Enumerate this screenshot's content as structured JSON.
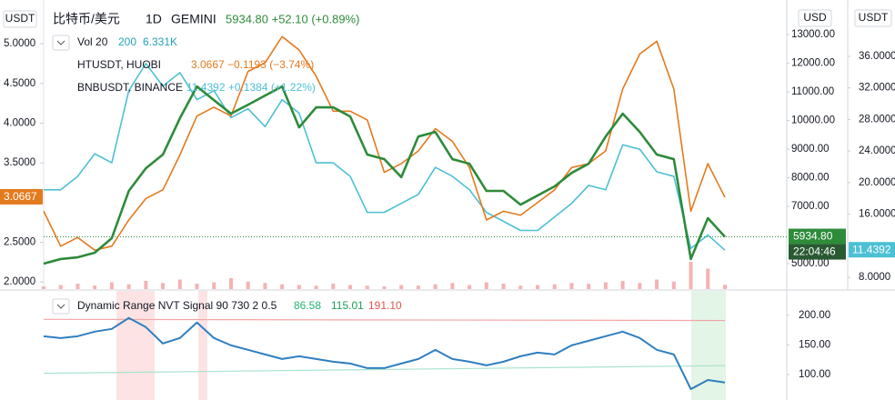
{
  "chart_data": {
    "type": "line",
    "left_unit": "USDT",
    "right_unit": "USD",
    "far_right_unit": "USDT",
    "symbol": "比特币/美元",
    "interval": "1D",
    "exchange": "GEMINI",
    "quote": "5934.80 +52.10 (+0.89%)",
    "time_tag": "22:04:46",
    "ylim": [
      4110,
      14210
    ],
    "yticks": [
      {
        "value": 5000,
        "label": "5000.00"
      },
      {
        "value": 7000,
        "label": "7000.00"
      },
      {
        "value": 8000,
        "label": "8000.00"
      },
      {
        "value": 9000,
        "label": "9000.00"
      },
      {
        "value": 10000,
        "label": "10000.00"
      },
      {
        "value": 11000,
        "label": "11000.00"
      },
      {
        "value": 12000,
        "label": "12000.00"
      },
      {
        "value": 13000,
        "label": "13000.00"
      }
    ],
    "ht_ylim": [
      1.91,
      5.55
    ],
    "ht_yticks": [
      {
        "value": 2,
        "label": "2.0000"
      },
      {
        "value": 2.5,
        "label": "2.5000"
      },
      {
        "value": 3.5,
        "label": "3.5000"
      },
      {
        "value": 4,
        "label": "4.0000"
      },
      {
        "value": 4.5,
        "label": "4.5000"
      },
      {
        "value": 5,
        "label": "5.0000"
      }
    ],
    "bnb_ylim": [
      6.51,
      43.14
    ],
    "bnb_yticks": [
      {
        "value": 8,
        "label": "8.0000"
      },
      {
        "value": 16,
        "label": "16.0000"
      },
      {
        "value": 20,
        "label": "20.0000"
      },
      {
        "value": 24,
        "label": "24.0000"
      },
      {
        "value": 28,
        "label": "28.0000"
      },
      {
        "value": 32,
        "label": "32.0000"
      },
      {
        "value": 36,
        "label": "36.0000"
      }
    ],
    "volume": {
      "name": "Vol 20",
      "length": "200",
      "value": "6.331K",
      "color": "#f3b3b3",
      "ylim": [
        0,
        80
      ],
      "values": [
        4,
        6,
        8,
        5,
        10,
        7,
        12,
        9,
        14,
        8,
        10,
        16,
        11,
        9,
        7,
        6,
        5,
        8,
        6,
        5,
        4,
        6,
        5,
        7,
        9,
        6,
        10,
        8,
        5,
        6,
        7,
        9,
        8,
        10,
        12,
        9,
        14,
        11,
        40,
        30,
        6.331
      ]
    },
    "series": [
      {
        "axis": "y",
        "color": "#2e8b3a",
        "tag": "5934.80",
        "values": [
          5000,
          5160,
          5220,
          5380,
          5890,
          7540,
          8330,
          8810,
          10080,
          11190,
          10710,
          10240,
          10550,
          10870,
          11190,
          9760,
          10460,
          10460,
          10140,
          8810,
          8650,
          8020,
          9440,
          9600,
          8650,
          8490,
          7540,
          7540,
          7060,
          7380,
          7700,
          8170,
          8490,
          9440,
          10240,
          9600,
          8810,
          8650,
          5160,
          6590,
          5934.8
        ]
      },
      {
        "axis": "ht",
        "name": "HTUSDT, HUOBI",
        "legend": "3.0667 −0.1193 (−3.74%)",
        "color": "#e47a1e",
        "tag": "3.0667",
        "values": [
          2.89,
          2.45,
          2.56,
          2.4,
          2.45,
          2.78,
          3.05,
          3.16,
          3.6,
          4.09,
          4.2,
          4.09,
          4.65,
          4.76,
          5.09,
          4.92,
          4.59,
          4.15,
          4.15,
          4.04,
          3.38,
          3.49,
          3.65,
          3.93,
          3.77,
          3.44,
          2.78,
          2.89,
          2.84,
          3.0,
          3.16,
          3.44,
          3.49,
          3.65,
          4.43,
          4.87,
          5.03,
          4.43,
          2.89,
          3.49,
          3.0667
        ]
      },
      {
        "axis": "bnb",
        "name": "BNBUSDT, BINANCE",
        "legend": "11.4392 +0.1384 (+1.22%)",
        "color": "#4cc0d4",
        "tag": "11.4392",
        "values": [
          19.09,
          19.09,
          20.8,
          23.66,
          22.51,
          31.66,
          35.09,
          32.23,
          33.94,
          30.51,
          31.66,
          28.23,
          29.37,
          27.09,
          30.51,
          28.8,
          22.51,
          22.51,
          20.8,
          16.23,
          16.23,
          17.37,
          18.51,
          21.94,
          20.8,
          19.09,
          16.23,
          15.09,
          13.94,
          13.94,
          15.66,
          17.37,
          19.66,
          19.09,
          24.8,
          24.23,
          21.37,
          20.8,
          11.66,
          13.37,
          11.4392
        ]
      }
    ],
    "indicator": {
      "name": "Dynamic Range NVT Signal 90 730 2 0.5",
      "ylim": [
        57,
        241
      ],
      "yticks": [
        {
          "value": 100,
          "label": "100.00"
        },
        {
          "value": 150,
          "label": "150.00"
        },
        {
          "value": 200,
          "label": "200.00"
        }
      ],
      "series": [
        {
          "label": "86.58",
          "color": "#2f7fc0",
          "label_color": "#22b573",
          "values": [
            164.6,
            161.5,
            164.6,
            172.3,
            176.9,
            195.4,
            180.0,
            152.3,
            161.5,
            187.7,
            161.5,
            149.2,
            141.6,
            133.9,
            126.2,
            130.8,
            126.2,
            121.6,
            118.5,
            110.8,
            110.8,
            118.5,
            126.2,
            141.6,
            126.2,
            121.6,
            115.4,
            121.6,
            130.8,
            136.9,
            133.9,
            149.2,
            156.9,
            164.6,
            172.3,
            161.5,
            141.6,
            133.9,
            75.4,
            90.8,
            86.58
          ]
        },
        {
          "label": "115.01",
          "color": "#a8e4cc",
          "label_color": "#1e9e5a",
          "values": [
            102,
            115.01
          ]
        },
        {
          "label": "191.10",
          "color": "#f3a5a5",
          "label_color": "#e05555",
          "values": [
            193,
            191.1
          ]
        }
      ]
    }
  }
}
